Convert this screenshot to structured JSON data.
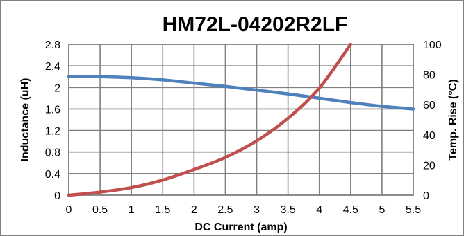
{
  "chart_data": {
    "type": "line",
    "title": "HM72L-04202R2LF",
    "xlabel": "DC Current (amp)",
    "ylabel": "Inductance (uH)",
    "y2label": "Temp. Rise (°C)",
    "xlim": [
      0,
      5.5
    ],
    "ylim": [
      0,
      2.8
    ],
    "y2lim": [
      0,
      100
    ],
    "x_ticks": [
      "0",
      "0.5",
      "1",
      "1.5",
      "2",
      "2.5",
      "3",
      "3.5",
      "4",
      "4.5",
      "5",
      "5.5"
    ],
    "y_ticks": [
      "0",
      "0.4",
      "0.8",
      "1.2",
      "1.6",
      "2",
      "2.4",
      "2.8"
    ],
    "y2_ticks": [
      "0",
      "20",
      "40",
      "60",
      "80",
      "100"
    ],
    "grid": true,
    "series": [
      {
        "axis": "left",
        "color": "#4f81bd",
        "x": [
          0,
          0.5,
          1,
          1.5,
          2,
          2.5,
          3,
          3.5,
          4,
          4.5,
          5,
          5.5
        ],
        "y": [
          2.2,
          2.2,
          2.18,
          2.14,
          2.08,
          2.02,
          1.95,
          1.88,
          1.8,
          1.72,
          1.65,
          1.6
        ]
      },
      {
        "axis": "right",
        "color": "#c0504d",
        "x": [
          0,
          0.5,
          1,
          1.5,
          2,
          2.5,
          3,
          3.5,
          4,
          4.5
        ],
        "y": [
          0,
          2,
          5,
          10,
          17,
          25,
          36,
          51,
          71,
          100
        ]
      }
    ]
  }
}
